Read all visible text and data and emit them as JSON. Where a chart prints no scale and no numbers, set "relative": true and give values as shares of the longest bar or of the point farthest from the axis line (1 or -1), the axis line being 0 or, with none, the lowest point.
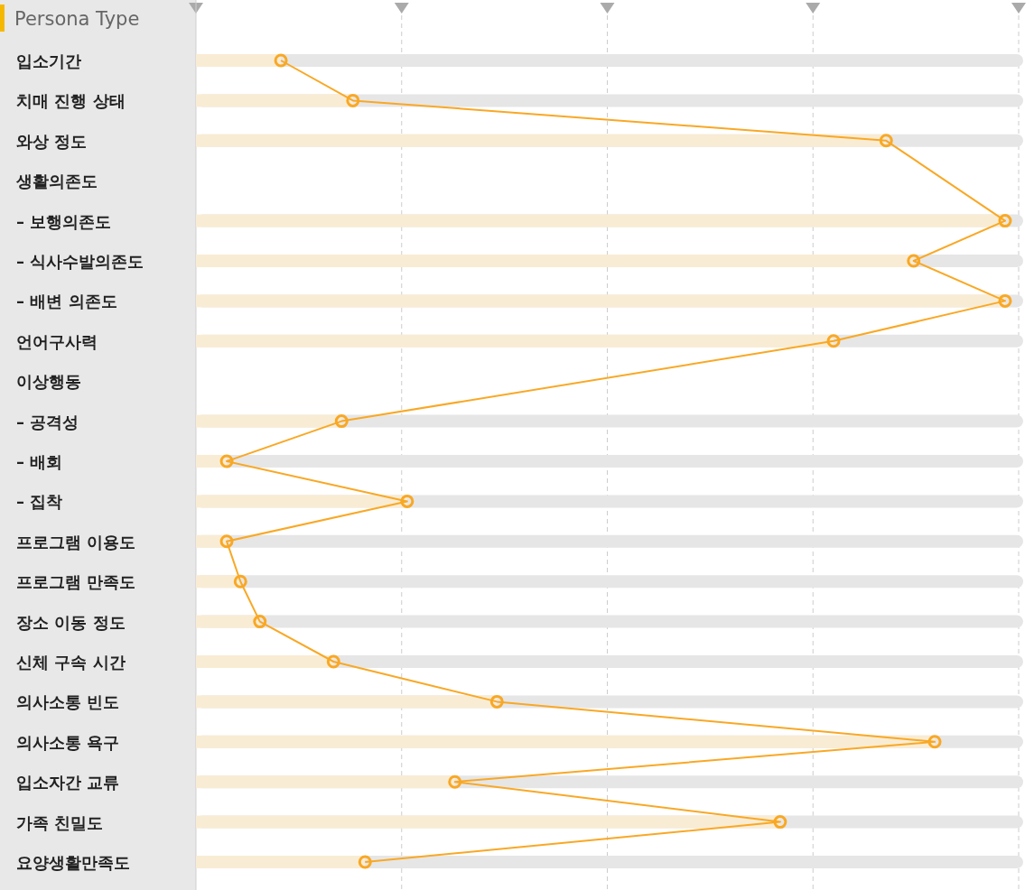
{
  "chart_data": {
    "type": "bar",
    "orientation": "horizontal",
    "relative": true,
    "title": "Persona Type",
    "grid": "x",
    "marker": "circle",
    "categories": [
      "입소기간",
      "치매 진행 상태",
      "와상 정도",
      "생활의존도",
      "– 보행의존도",
      "– 식사수발의존도",
      "– 배변 의존도",
      "언어구사력",
      "이상행동",
      "– 공격성",
      "– 배회",
      "– 집착",
      "프로그램 이용도",
      "프로그램 만족도",
      "장소 이동 정도",
      "신체 구속 시간",
      "의사소통 빈도",
      "의사소통 욕구",
      "입소자간 교류",
      "가족 친밀도",
      "요양생활만족도"
    ],
    "series": [
      {
        "color": "#f9ecd4",
        "values": [
          0.105,
          0.194,
          0.853,
          null,
          1,
          0.887,
          1,
          0.788,
          null,
          0.18,
          0.038,
          0.261,
          0.038,
          0.055,
          0.079,
          0.17,
          0.372,
          0.913,
          0.32,
          0.722,
          0.209
        ]
      },
      {
        "type": "line",
        "color": "#f9a825",
        "values": [
          0.105,
          0.194,
          0.853,
          null,
          1,
          0.887,
          1,
          0.788,
          null,
          0.18,
          0.038,
          0.261,
          0.038,
          0.055,
          0.079,
          0.17,
          0.372,
          0.913,
          0.32,
          0.722,
          0.209
        ]
      }
    ]
  }
}
